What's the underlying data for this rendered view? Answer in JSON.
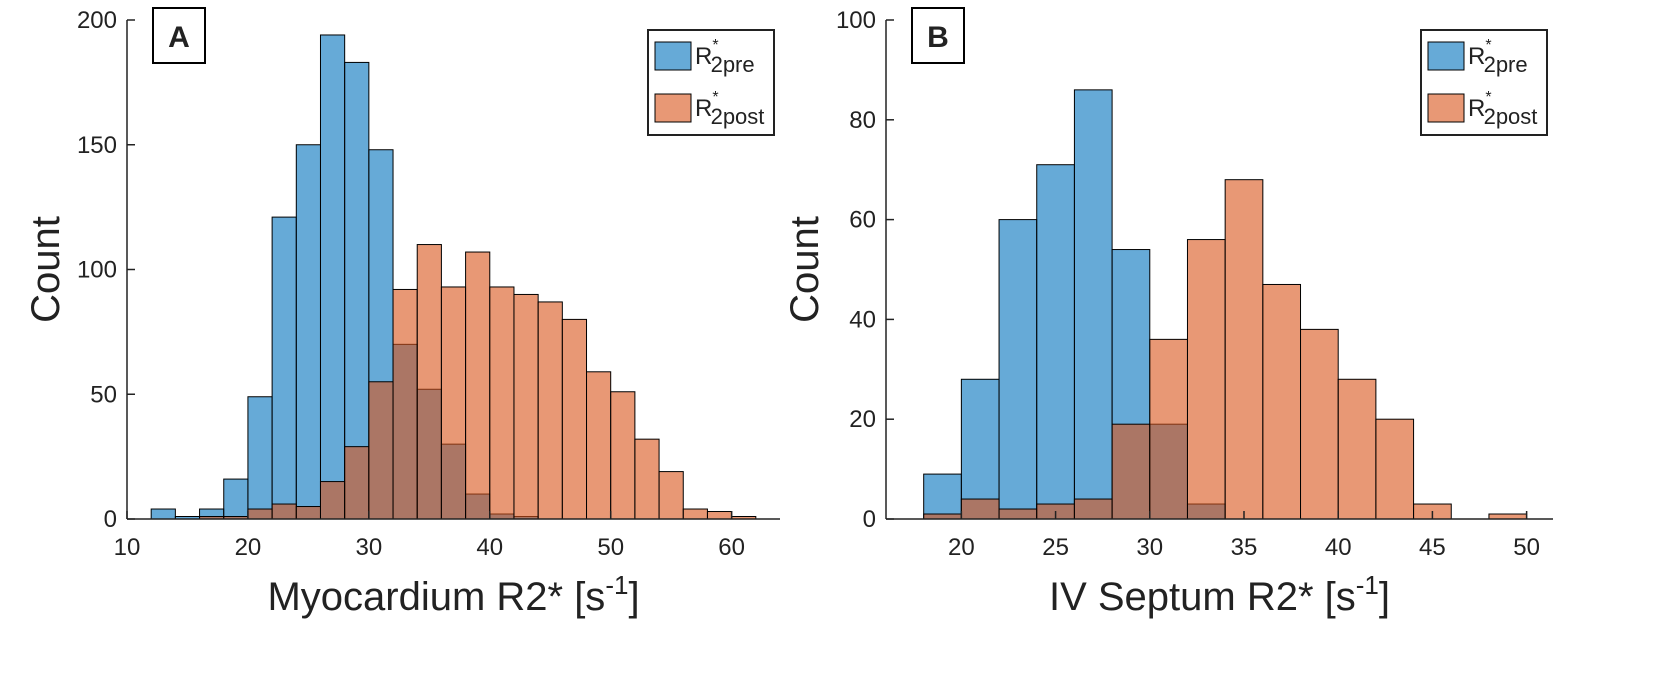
{
  "chart_data": [
    {
      "type": "histogram",
      "panel_label": "A",
      "ylabel": "Count",
      "xlabel": "Myocardium R2* [s",
      "xlabel_sup": "-1",
      "xlabel_end": "]",
      "bins": [
        12,
        14,
        16,
        18,
        20,
        22,
        24,
        26,
        28,
        30,
        32,
        34,
        36,
        38,
        40,
        42,
        44,
        46,
        48,
        50,
        52,
        54,
        56,
        58,
        60,
        62
      ],
      "series": [
        {
          "name": "R",
          "name_sup": "*",
          "name_sub": "2pre",
          "color": "#0072bd",
          "values": [
            4,
            1,
            4,
            16,
            49,
            121,
            150,
            194,
            183,
            148,
            70,
            52,
            30,
            10,
            2,
            1,
            0,
            0,
            0,
            0,
            0,
            0,
            0,
            0,
            0
          ]
        },
        {
          "name": "R",
          "name_sup": "*",
          "name_sub": "2post",
          "color": "#d95319",
          "values": [
            0,
            0,
            1,
            1,
            4,
            6,
            5,
            15,
            29,
            55,
            92,
            110,
            93,
            107,
            93,
            90,
            87,
            80,
            59,
            51,
            32,
            19,
            4,
            3,
            1
          ]
        }
      ],
      "xlim": [
        10,
        64
      ],
      "xticks": [
        10,
        20,
        30,
        40,
        50,
        60
      ],
      "ylim": [
        0,
        200
      ],
      "yticks": [
        0,
        50,
        100,
        150,
        200
      ],
      "legend": "upper right"
    },
    {
      "type": "histogram",
      "panel_label": "B",
      "ylabel": "Count",
      "xlabel": "IV Septum R2* [s",
      "xlabel_sup": "-1",
      "xlabel_end": "]",
      "bins": [
        18,
        20,
        22,
        24,
        26,
        28,
        30,
        32,
        34,
        36,
        38,
        40,
        42,
        44,
        46,
        48,
        50
      ],
      "series": [
        {
          "name": "R",
          "name_sup": "*",
          "name_sub": "2pre",
          "color": "#0072bd",
          "values": [
            9,
            28,
            60,
            71,
            86,
            54,
            19,
            3,
            0,
            0,
            0,
            0,
            0,
            0,
            0,
            0
          ]
        },
        {
          "name": "R",
          "name_sup": "*",
          "name_sub": "2post",
          "color": "#d95319",
          "values": [
            1,
            4,
            2,
            3,
            4,
            19,
            36,
            56,
            68,
            47,
            38,
            28,
            20,
            3,
            0,
            1
          ]
        }
      ],
      "xlim": [
        16,
        51.4
      ],
      "xticks": [
        20,
        25,
        30,
        35,
        40,
        45,
        50
      ],
      "ylim": [
        0,
        100
      ],
      "yticks": [
        0,
        20,
        40,
        60,
        80,
        100
      ],
      "legend": "upper right"
    }
  ]
}
